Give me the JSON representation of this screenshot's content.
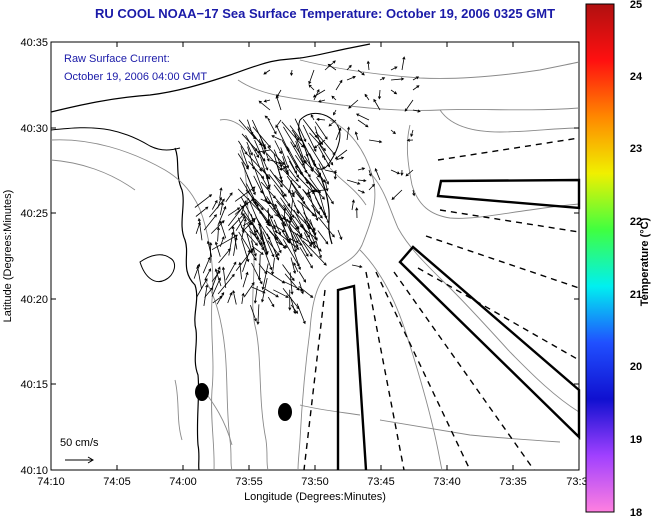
{
  "title": "RU COOL  NOAA−17  Sea Surface Temperature:  October 19, 2006 0325 GMT",
  "current_info": {
    "line1": "Raw Surface Current:",
    "line2": "October 19, 2006 04:00 GMT"
  },
  "scale_label": "50 cm/s",
  "axes": {
    "xlabel": "Longitude (Degrees:Minutes)",
    "ylabel": "Latitude (Degrees:Minutes)",
    "xticks": [
      "74:10",
      "74:05",
      "74:00",
      "73:55",
      "73:50",
      "73:45",
      "73:40",
      "73:35",
      "73:3"
    ],
    "yticks": [
      "40:35",
      "40:30",
      "40:25",
      "40:20",
      "40:15",
      "40:10"
    ]
  },
  "colorbar": {
    "label": "Temperature (°C)",
    "ticks": [
      "25",
      "24",
      "23",
      "22",
      "21",
      "20",
      "19",
      "18"
    ],
    "colors": [
      "#b01010",
      "#ff1010",
      "#ff8800",
      "#f0f000",
      "#40ff40",
      "#00f0f0",
      "#2050ff",
      "#1010d0",
      "#a040ff",
      "#ff80e0"
    ]
  },
  "colors": {
    "title": "#1a1aa8",
    "coastline": "#000000",
    "contours": "#888888"
  }
}
